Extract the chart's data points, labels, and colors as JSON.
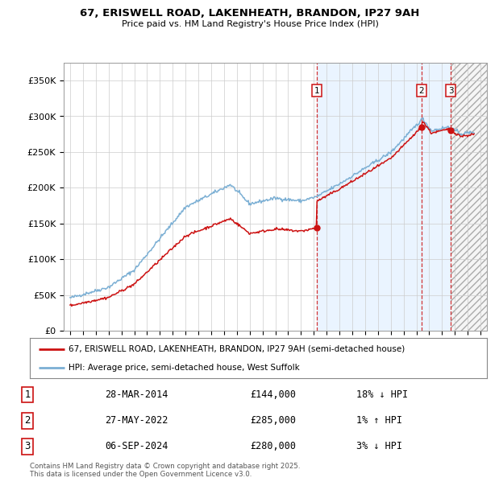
{
  "title": "67, ERISWELL ROAD, LAKENHEATH, BRANDON, IP27 9AH",
  "subtitle": "Price paid vs. HM Land Registry's House Price Index (HPI)",
  "footer": "Contains HM Land Registry data © Crown copyright and database right 2025.\nThis data is licensed under the Open Government Licence v3.0.",
  "legend_line1": "67, ERISWELL ROAD, LAKENHEATH, BRANDON, IP27 9AH (semi-detached house)",
  "legend_line2": "HPI: Average price, semi-detached house, West Suffolk",
  "transactions": [
    {
      "num": 1,
      "date": "28-MAR-2014",
      "price": 144000,
      "pct": "18%",
      "dir": "↓",
      "year_x": 2014.24
    },
    {
      "num": 2,
      "date": "27-MAY-2022",
      "price": 285000,
      "pct": "1%",
      "dir": "↑",
      "year_x": 2022.41
    },
    {
      "num": 3,
      "date": "06-SEP-2024",
      "price": 280000,
      "pct": "3%",
      "dir": "↓",
      "year_x": 2024.68
    }
  ],
  "hpi_color": "#7bafd4",
  "price_color": "#cc1111",
  "dashed_color": "#cc1111",
  "bg_color": "#ffffff",
  "grid_color": "#cccccc",
  "shade_color": "#ddeeff",
  "hatch_color": "#bbbbbb",
  "ylim": [
    0,
    375000
  ],
  "xlim_start": 1994.5,
  "xlim_end": 2027.5,
  "t1_year": 2014.24,
  "t1_price": 144000,
  "t2_year": 2022.41,
  "t2_price": 285000,
  "t3_year": 2024.68,
  "t3_price": 280000
}
